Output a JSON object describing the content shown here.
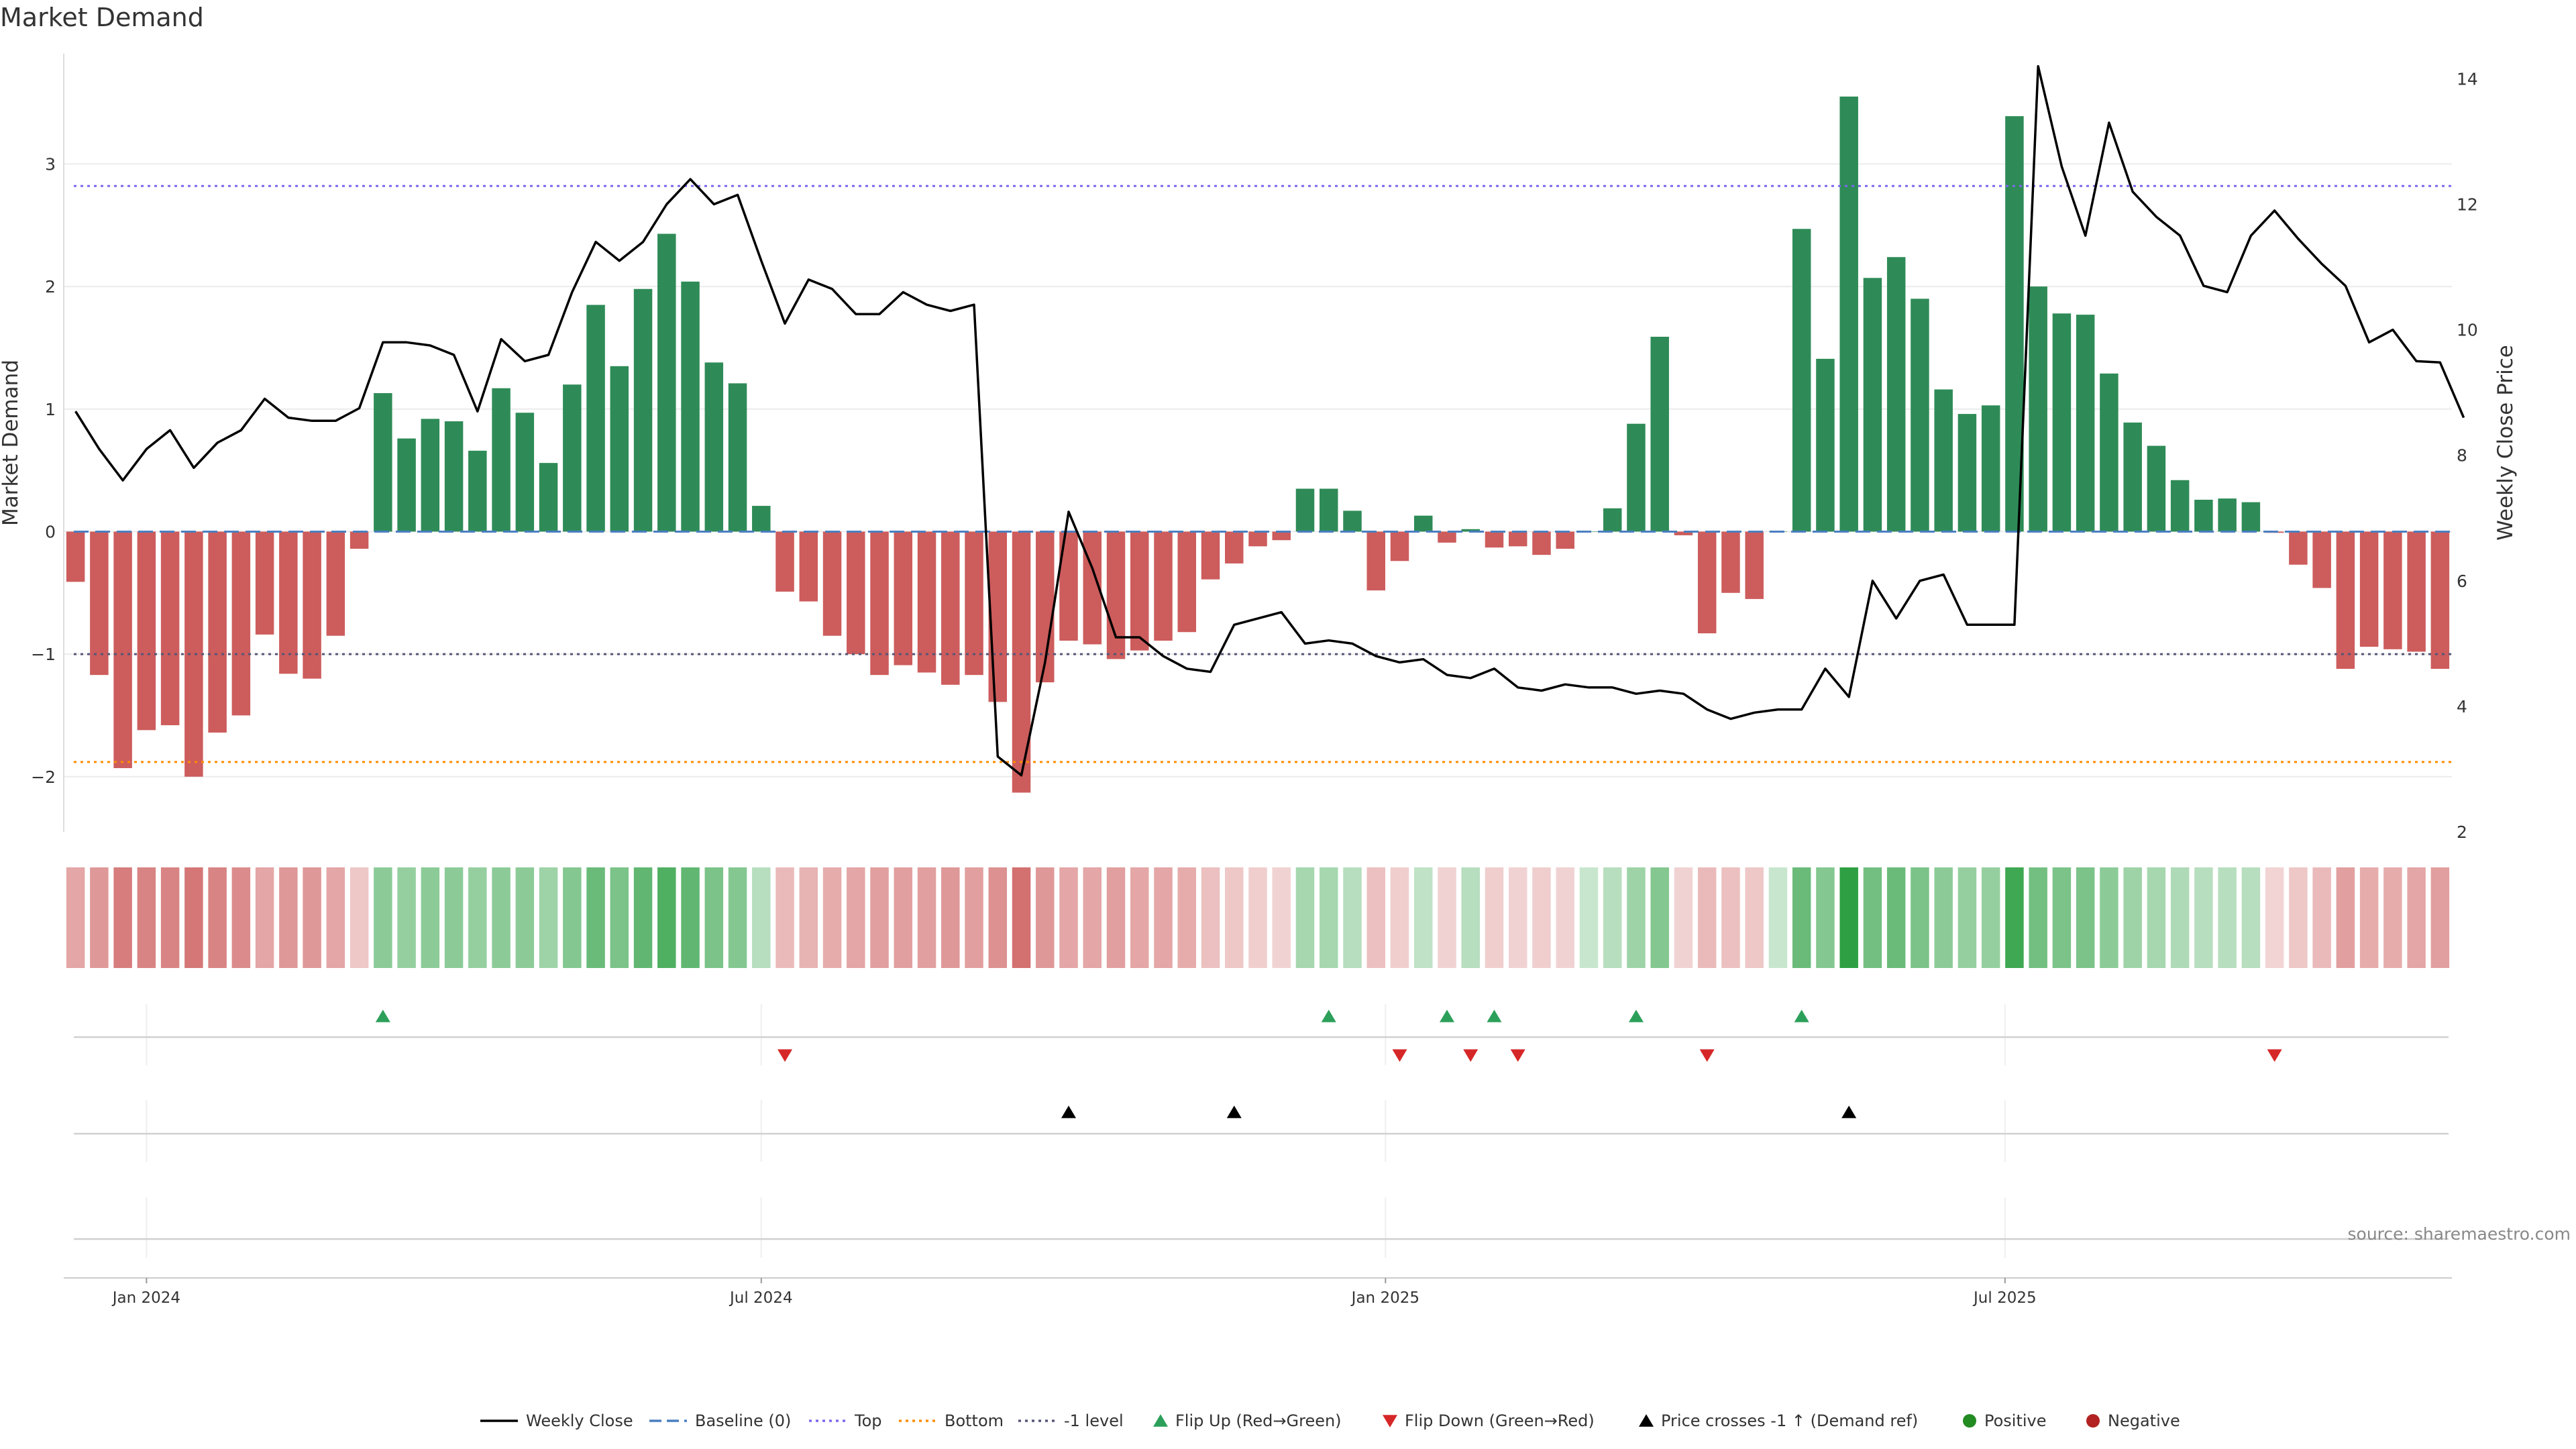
{
  "title": "Market Demand",
  "source": "source: sharemaestro.com",
  "colors": {
    "positive": "#2e8b57",
    "negative": "#cd5c5c",
    "price": "#000000",
    "baseline": "#4a7fc1",
    "top": "#7b68ee",
    "bottom": "#ff8c00",
    "minus_one": "#555577",
    "flip_up": "#2ca05a",
    "flip_down": "#d62728",
    "cross": "#000000",
    "positive_dot": "#228b22",
    "negative_dot": "#b22222"
  },
  "chart_data": {
    "type": "bar",
    "title": "Market Demand",
    "ylabel": "Market Demand",
    "ylabel_right": "Weekly Close Price",
    "ylim": [
      -2.45,
      3.9
    ],
    "ylim_right": [
      2,
      14.4
    ],
    "yticks": [
      -2,
      -1,
      0,
      1,
      2,
      3
    ],
    "yticks_right": [
      2,
      4,
      6,
      8,
      10,
      12,
      14
    ],
    "xticks": [
      {
        "label": "Jan 2024",
        "index": 3
      },
      {
        "label": "Jul 2024",
        "index": 29
      },
      {
        "label": "Jan 2025",
        "index": 55.4
      },
      {
        "label": "Jul 2025",
        "index": 81.6
      }
    ],
    "reference_lines": {
      "baseline": 0,
      "top": 2.82,
      "bottom": -1.88,
      "minus_one": -1
    },
    "demand": [
      -0.41,
      -1.17,
      -1.93,
      -1.62,
      -1.58,
      -2.0,
      -1.64,
      -1.5,
      -0.84,
      -1.16,
      -1.2,
      -0.85,
      -0.14,
      1.13,
      0.76,
      0.92,
      0.9,
      0.66,
      1.17,
      0.97,
      0.56,
      1.2,
      1.85,
      1.35,
      1.98,
      2.43,
      2.04,
      1.38,
      1.21,
      0.21,
      -0.49,
      -0.57,
      -0.85,
      -1.0,
      -1.17,
      -1.09,
      -1.15,
      -1.25,
      -1.17,
      -1.39,
      -2.13,
      -1.23,
      -0.89,
      -0.92,
      -1.04,
      -0.97,
      -0.89,
      -0.82,
      -0.39,
      -0.26,
      -0.12,
      -0.07,
      0.35,
      0.35,
      0.17,
      -0.48,
      -0.24,
      0.13,
      -0.09,
      0.02,
      -0.13,
      -0.12,
      -0.19,
      -0.14,
      0.0,
      0.19,
      0.88,
      1.59,
      -0.03,
      -0.83,
      -0.5,
      -0.55,
      0.0,
      2.47,
      1.41,
      3.55,
      2.07,
      2.24,
      1.9,
      1.16,
      0.96,
      1.03,
      3.39,
      2.0,
      1.78,
      1.77,
      1.29,
      0.89,
      0.7,
      0.42,
      0.26,
      0.27,
      0.24,
      -0.01,
      -0.27,
      -0.46,
      -1.12,
      -0.94,
      -0.96,
      -0.98,
      -1.12
    ],
    "price": [
      8.7,
      8.1,
      7.6,
      8.1,
      8.4,
      7.8,
      8.2,
      8.4,
      8.9,
      8.6,
      8.55,
      8.55,
      8.75,
      9.8,
      9.8,
      9.75,
      9.6,
      8.7,
      9.85,
      9.5,
      9.6,
      10.6,
      11.4,
      11.1,
      11.4,
      12.0,
      12.4,
      12.0,
      12.15,
      11.1,
      10.1,
      10.8,
      10.65,
      10.25,
      10.25,
      10.6,
      10.4,
      10.3,
      10.4,
      3.2,
      2.9,
      4.7,
      7.1,
      6.2,
      5.1,
      5.1,
      4.8,
      4.6,
      4.55,
      5.3,
      5.4,
      5.5,
      5.0,
      5.05,
      5.0,
      4.8,
      4.7,
      4.75,
      4.5,
      4.45,
      4.6,
      4.3,
      4.25,
      4.35,
      4.3,
      4.3,
      4.2,
      4.25,
      4.2,
      3.95,
      3.8,
      3.9,
      3.95,
      3.95,
      4.6,
      4.15,
      6.0,
      5.4,
      6.0,
      6.1,
      5.3,
      5.3,
      5.3,
      14.2,
      12.6,
      11.5,
      13.3,
      12.2,
      11.8,
      11.5,
      10.7,
      10.6,
      11.5,
      11.9,
      11.45,
      11.05,
      10.7,
      9.8,
      10.0,
      9.5,
      9.48,
      8.6
    ],
    "heat": [
      0.45,
      0.55,
      0.75,
      0.7,
      0.7,
      0.8,
      0.7,
      0.65,
      0.45,
      0.55,
      0.55,
      0.45,
      0.2,
      0.45,
      0.4,
      0.45,
      0.45,
      0.4,
      0.45,
      0.45,
      0.35,
      0.5,
      0.65,
      0.55,
      0.7,
      0.8,
      0.7,
      0.55,
      0.5,
      0.2,
      0.3,
      0.35,
      0.4,
      0.45,
      0.5,
      0.5,
      0.5,
      0.55,
      0.5,
      0.6,
      0.85,
      0.55,
      0.45,
      0.45,
      0.5,
      0.45,
      0.45,
      0.4,
      0.25,
      0.2,
      0.15,
      0.12,
      0.3,
      0.3,
      0.2,
      0.25,
      0.15,
      0.15,
      0.12,
      0.2,
      0.15,
      0.12,
      0.15,
      0.12,
      0.1,
      0.2,
      0.35,
      0.5,
      0.12,
      0.3,
      0.25,
      0.2,
      0.1,
      0.65,
      0.5,
      1.0,
      0.6,
      0.65,
      0.55,
      0.45,
      0.4,
      0.4,
      0.9,
      0.6,
      0.55,
      0.55,
      0.45,
      0.35,
      0.3,
      0.25,
      0.2,
      0.2,
      0.2,
      0.1,
      0.2,
      0.3,
      0.5,
      0.4,
      0.4,
      0.45,
      0.5
    ],
    "flip_up": [
      13,
      53,
      58,
      60,
      66,
      73
    ],
    "flip_down": [
      30,
      56,
      59,
      61,
      69,
      93
    ],
    "price_crosses": [
      42,
      49,
      75
    ],
    "legend": [
      "Weekly Close",
      "Baseline (0)",
      "Top",
      "Bottom",
      "-1 level",
      "Flip Up (Red→Green)",
      "Flip Down (Green→Red)",
      "Price crosses -1 ↑ (Demand ref)",
      "Positive",
      "Negative"
    ]
  }
}
